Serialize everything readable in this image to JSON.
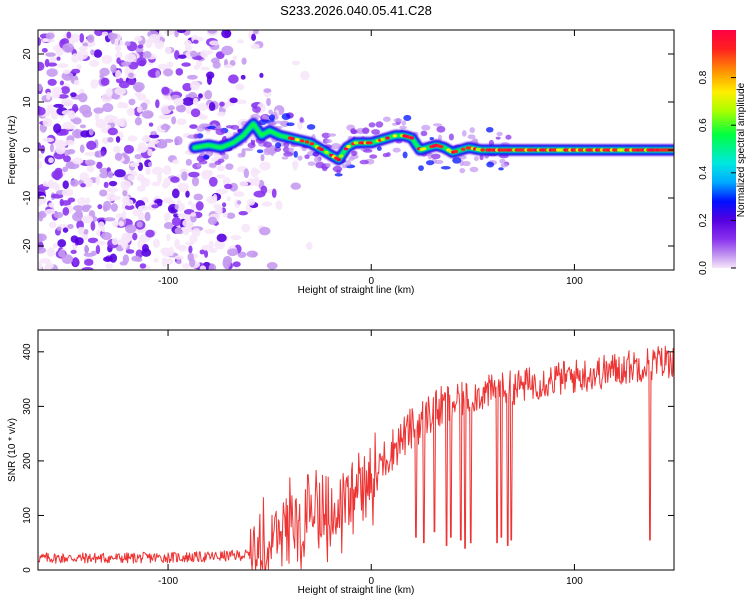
{
  "figure_title": "S233.2026.040.05.41.C28",
  "colors": {
    "axis": "#000000",
    "snr_line": "#ee3333",
    "background": "#ffffff",
    "colormap": [
      "#f6e6fa",
      "#c59bf0",
      "#8a33ee",
      "#5500e0",
      "#0010ff",
      "#00aaff",
      "#00e8e0",
      "#00ff40",
      "#aaff00",
      "#ffee00",
      "#ff9900",
      "#ff2020",
      "#ff0044"
    ]
  },
  "chart_data": [
    {
      "type": "heatmap",
      "name": "spectrogram",
      "title": "S233.2026.040.05.41.C28",
      "xlabel": "Height of straight line (km)",
      "ylabel": "Frequency (Hz)",
      "xlim": [
        -164,
        149
      ],
      "ylim": [
        -25,
        25
      ],
      "xticks": [
        -100,
        0,
        100
      ],
      "yticks": [
        20,
        10,
        0,
        -10,
        -20
      ],
      "ridge": {
        "description": "dominant frequency ridge (Hz) versus height (km)",
        "x": [
          -87,
          -80,
          -74,
          -68,
          -63,
          -58,
          -54,
          -50,
          -45,
          -40,
          -35,
          -30,
          -26,
          -22,
          -18,
          -16,
          -12,
          -8,
          -4,
          0,
          4,
          8,
          12,
          16,
          20,
          24,
          28,
          32,
          36,
          40,
          44,
          48,
          54,
          60,
          66,
          75,
          100,
          125,
          149
        ],
        "y": [
          0.5,
          1.0,
          0.5,
          1.5,
          3.0,
          5.5,
          3.0,
          4.0,
          3.0,
          2.5,
          2.0,
          1.5,
          0.5,
          -0.5,
          -1.5,
          -2.0,
          0.5,
          1.5,
          1.5,
          1.5,
          2.0,
          2.5,
          3.0,
          3.0,
          2.5,
          0.0,
          0.5,
          1.0,
          0.5,
          -0.5,
          0.0,
          0.5,
          0.0,
          0.0,
          0.0,
          0.0,
          0.0,
          0.0,
          0.0
        ]
      },
      "noise_region": {
        "x_from": -164,
        "x_to": -60
      },
      "colorbar": {
        "label": "Normalized spectral amplitude",
        "range": [
          0,
          1
        ],
        "ticks": [
          "0.0",
          "0.2",
          "0.4",
          "0.6",
          "0.8"
        ]
      }
    },
    {
      "type": "line",
      "name": "snr",
      "xlabel": "Height of straight line (km)",
      "ylabel": "SNR (10 * v/v)",
      "xlim": [
        -164,
        149
      ],
      "ylim": [
        0,
        440
      ],
      "xticks": [
        -100,
        0,
        100
      ],
      "yticks": [
        0,
        100,
        200,
        300,
        400
      ],
      "trend": {
        "x": [
          -164,
          -120,
          -80,
          -60,
          -50,
          -40,
          -30,
          -20,
          -10,
          0,
          10,
          20,
          30,
          40,
          50,
          70,
          90,
          110,
          130,
          149
        ],
        "y": [
          22,
          22,
          24,
          28,
          50,
          80,
          100,
          110,
          130,
          170,
          220,
          260,
          290,
          305,
          320,
          335,
          350,
          360,
          375,
          385
        ]
      },
      "dropouts": {
        "x": [
          22,
          26,
          31,
          37,
          39,
          44,
          46,
          49,
          62,
          64,
          67,
          69,
          137
        ],
        "y": [
          60,
          50,
          70,
          45,
          60,
          55,
          40,
          50,
          50,
          60,
          45,
          55,
          55
        ]
      }
    }
  ]
}
